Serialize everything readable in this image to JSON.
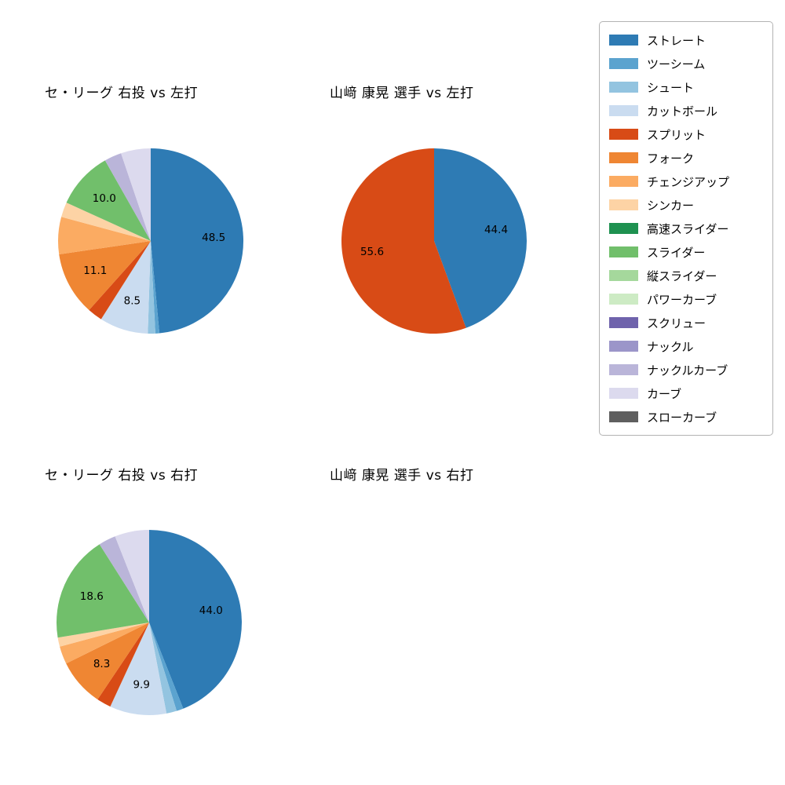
{
  "page": {
    "background": "#ffffff"
  },
  "legend": {
    "items": [
      {
        "label": "ストレート",
        "color": "#2e7bb4"
      },
      {
        "label": "ツーシーム",
        "color": "#5ba3cf"
      },
      {
        "label": "シュート",
        "color": "#93c4e0"
      },
      {
        "label": "カットボール",
        "color": "#cadcf0"
      },
      {
        "label": "スプリット",
        "color": "#d84b16"
      },
      {
        "label": "フォーク",
        "color": "#ef8633"
      },
      {
        "label": "チェンジアップ",
        "color": "#fbab62"
      },
      {
        "label": "シンカー",
        "color": "#fdd3a5"
      },
      {
        "label": "高速スライダー",
        "color": "#1e9150"
      },
      {
        "label": "スライダー",
        "color": "#71bf6b"
      },
      {
        "label": "縦スライダー",
        "color": "#a5d89c"
      },
      {
        "label": "パワーカーブ",
        "color": "#cdebc4"
      },
      {
        "label": "スクリュー",
        "color": "#6f63ac"
      },
      {
        "label": "ナックル",
        "color": "#9b95c9"
      },
      {
        "label": "ナックルカーブ",
        "color": "#bab5d9"
      },
      {
        "label": "カーブ",
        "color": "#dcdaee"
      },
      {
        "label": "スローカーブ",
        "color": "#5f5f5f"
      }
    ]
  },
  "chart_data": [
    {
      "type": "pie",
      "title": "セ・リーグ 右投 vs 左打",
      "start_angle": "top",
      "direction": "clockwise",
      "label_threshold_pct": 7,
      "labeled_values": [
        48.5,
        8.5,
        11.1,
        10.0
      ],
      "slices": [
        {
          "label": "ストレート",
          "value": 48.5
        },
        {
          "label": "ツーシーム",
          "value": 0.7
        },
        {
          "label": "シュート",
          "value": 1.3
        },
        {
          "label": "カットボール",
          "value": 8.5
        },
        {
          "label": "スプリット",
          "value": 2.6
        },
        {
          "label": "フォーク",
          "value": 11.1
        },
        {
          "label": "チェンジアップ",
          "value": 6.5
        },
        {
          "label": "シンカー",
          "value": 2.6
        },
        {
          "label": "スライダー",
          "value": 10.0
        },
        {
          "label": "ナックルカーブ",
          "value": 3.0
        },
        {
          "label": "カーブ",
          "value": 5.2
        }
      ]
    },
    {
      "type": "pie",
      "title": "山﨑 康晃 選手 vs 左打",
      "start_angle": "top",
      "direction": "clockwise",
      "label_threshold_pct": 7,
      "labeled_values": [
        44.4,
        55.6
      ],
      "slices": [
        {
          "label": "ストレート",
          "value": 44.4
        },
        {
          "label": "スプリット",
          "value": 55.6
        }
      ]
    },
    {
      "type": "pie",
      "title": "セ・リーグ 右投 vs 右打",
      "start_angle": "top",
      "direction": "clockwise",
      "label_threshold_pct": 7,
      "labeled_values": [
        44.0,
        9.9,
        8.3,
        18.6
      ],
      "slices": [
        {
          "label": "ストレート",
          "value": 44.0
        },
        {
          "label": "ツーシーム",
          "value": 1.2
        },
        {
          "label": "シュート",
          "value": 1.8
        },
        {
          "label": "カットボール",
          "value": 9.9
        },
        {
          "label": "スプリット",
          "value": 2.5
        },
        {
          "label": "フォーク",
          "value": 8.3
        },
        {
          "label": "チェンジアップ",
          "value": 3.1
        },
        {
          "label": "シンカー",
          "value": 1.6
        },
        {
          "label": "スライダー",
          "value": 18.6
        },
        {
          "label": "ナックルカーブ",
          "value": 3.0
        },
        {
          "label": "カーブ",
          "value": 6.0
        }
      ]
    },
    {
      "type": "pie",
      "title": "山﨑 康晃 選手 vs 右打",
      "start_angle": "top",
      "direction": "clockwise",
      "label_threshold_pct": 7,
      "labeled_values": [],
      "slices": []
    }
  ]
}
